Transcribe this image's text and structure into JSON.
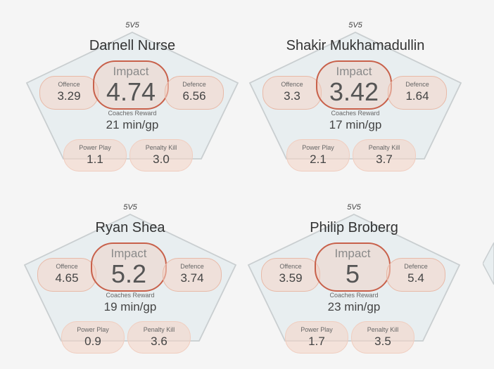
{
  "cards": [
    {
      "situation": "5V5",
      "name": "Darnell Nurse",
      "impact_label": "Impact",
      "impact": "4.74",
      "offence_label": "Offence",
      "offence": "3.29",
      "defence_label": "Defence",
      "defence": "6.56",
      "coaches_label": "Coaches Reward",
      "coaches_value": "21 min/gp",
      "pp_label": "Power Play",
      "pp": "1.1",
      "pk_label": "Penalty Kill",
      "pk": "3.0"
    },
    {
      "situation": "5V5",
      "name": "Shakir Mukhamadullin",
      "impact_label": "Impact",
      "impact": "3.42",
      "offence_label": "Offence",
      "offence": "3.3",
      "defence_label": "Defence",
      "defence": "1.64",
      "coaches_label": "Coaches Reward",
      "coaches_value": "17 min/gp",
      "pp_label": "Power Play",
      "pp": "2.1",
      "pk_label": "Penalty Kill",
      "pk": "3.7"
    },
    {
      "situation": "5V5",
      "name": "Ryan Shea",
      "impact_label": "Impact",
      "impact": "5.2",
      "offence_label": "Offence",
      "offence": "4.65",
      "defence_label": "Defence",
      "defence": "3.74",
      "coaches_label": "Coaches Reward",
      "coaches_value": "19 min/gp",
      "pp_label": "Power Play",
      "pp": "0.9",
      "pk_label": "Penalty Kill",
      "pk": "3.6"
    },
    {
      "situation": "5V5",
      "name": "Philip Broberg",
      "impact_label": "Impact",
      "impact": "5",
      "offence_label": "Offence",
      "offence": "3.59",
      "defence_label": "Defence",
      "defence": "5.4",
      "coaches_label": "Coaches Reward",
      "coaches_value": "23 min/gp",
      "pp_label": "Power Play",
      "pp": "1.7",
      "pk_label": "Penalty Kill",
      "pk": "3.5"
    }
  ],
  "colors": {
    "pentagon_fill": "#e8eef0",
    "pentagon_stroke": "#c9ced0",
    "impact_border": "#c8614b",
    "pill_fill": "#f4d6c8",
    "pill_border": "#e8b9a7"
  }
}
